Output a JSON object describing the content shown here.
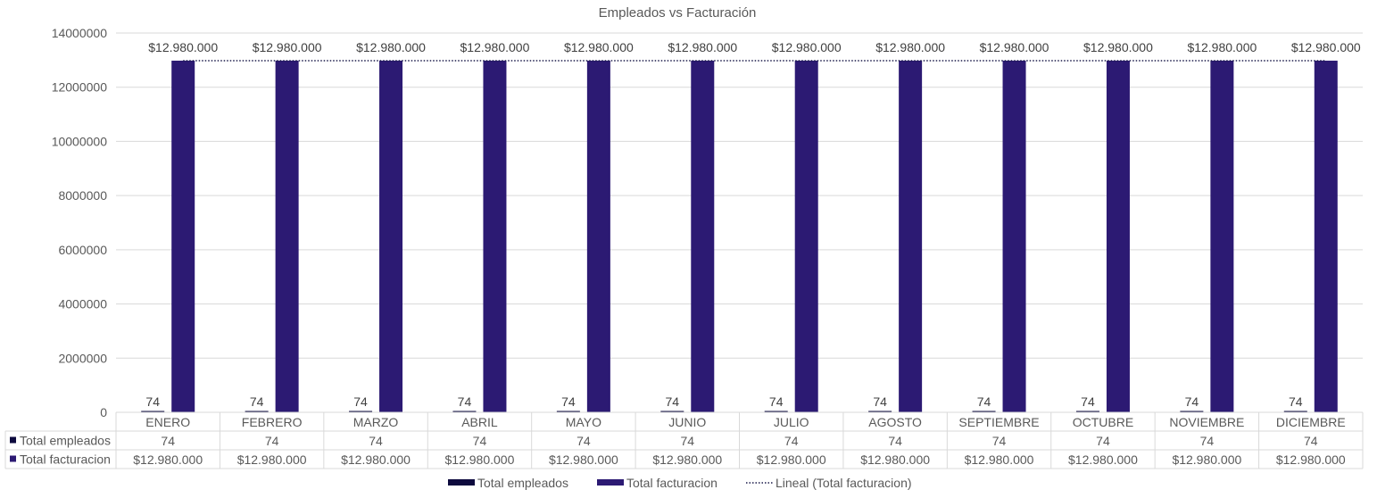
{
  "chart_data": {
    "type": "bar",
    "title": "Empleados vs Facturación",
    "categories": [
      "ENERO",
      "FEBRERO",
      "MARZO",
      "ABRIL",
      "MAYO",
      "JUNIO",
      "JULIO",
      "AGOSTO",
      "SEPTIEMBRE",
      "OCTUBRE",
      "NOVIEMBRE",
      "DICIEMBRE"
    ],
    "series": [
      {
        "name": "Total empleados",
        "color": "#0d0a3e",
        "values": [
          74,
          74,
          74,
          74,
          74,
          74,
          74,
          74,
          74,
          74,
          74,
          74
        ],
        "labels": [
          "74",
          "74",
          "74",
          "74",
          "74",
          "74",
          "74",
          "74",
          "74",
          "74",
          "74",
          "74"
        ]
      },
      {
        "name": "Total facturacion",
        "color": "#2c1a73",
        "values": [
          12980000,
          12980000,
          12980000,
          12980000,
          12980000,
          12980000,
          12980000,
          12980000,
          12980000,
          12980000,
          12980000,
          12980000
        ],
        "labels": [
          "$12.980.000",
          "$12.980.000",
          "$12.980.000",
          "$12.980.000",
          "$12.980.000",
          "$12.980.000",
          "$12.980.000",
          "$12.980.000",
          "$12.980.000",
          "$12.980.000",
          "$12.980.000",
          "$12.980.000"
        ]
      }
    ],
    "trendline": {
      "name": "Lineal (Total facturacion)",
      "series": "Total facturacion",
      "style": "dotted",
      "color": "#1a1a4a"
    },
    "ylim": [
      0,
      14000000
    ],
    "yticks": [
      0,
      2000000,
      4000000,
      6000000,
      8000000,
      10000000,
      12000000,
      14000000
    ],
    "ytick_labels": [
      "0",
      "2000000",
      "4000000",
      "6000000",
      "8000000",
      "10000000",
      "12000000",
      "14000000"
    ],
    "xlabel": "",
    "ylabel": "",
    "grid": true,
    "legend_position": "bottom",
    "data_table": true
  }
}
